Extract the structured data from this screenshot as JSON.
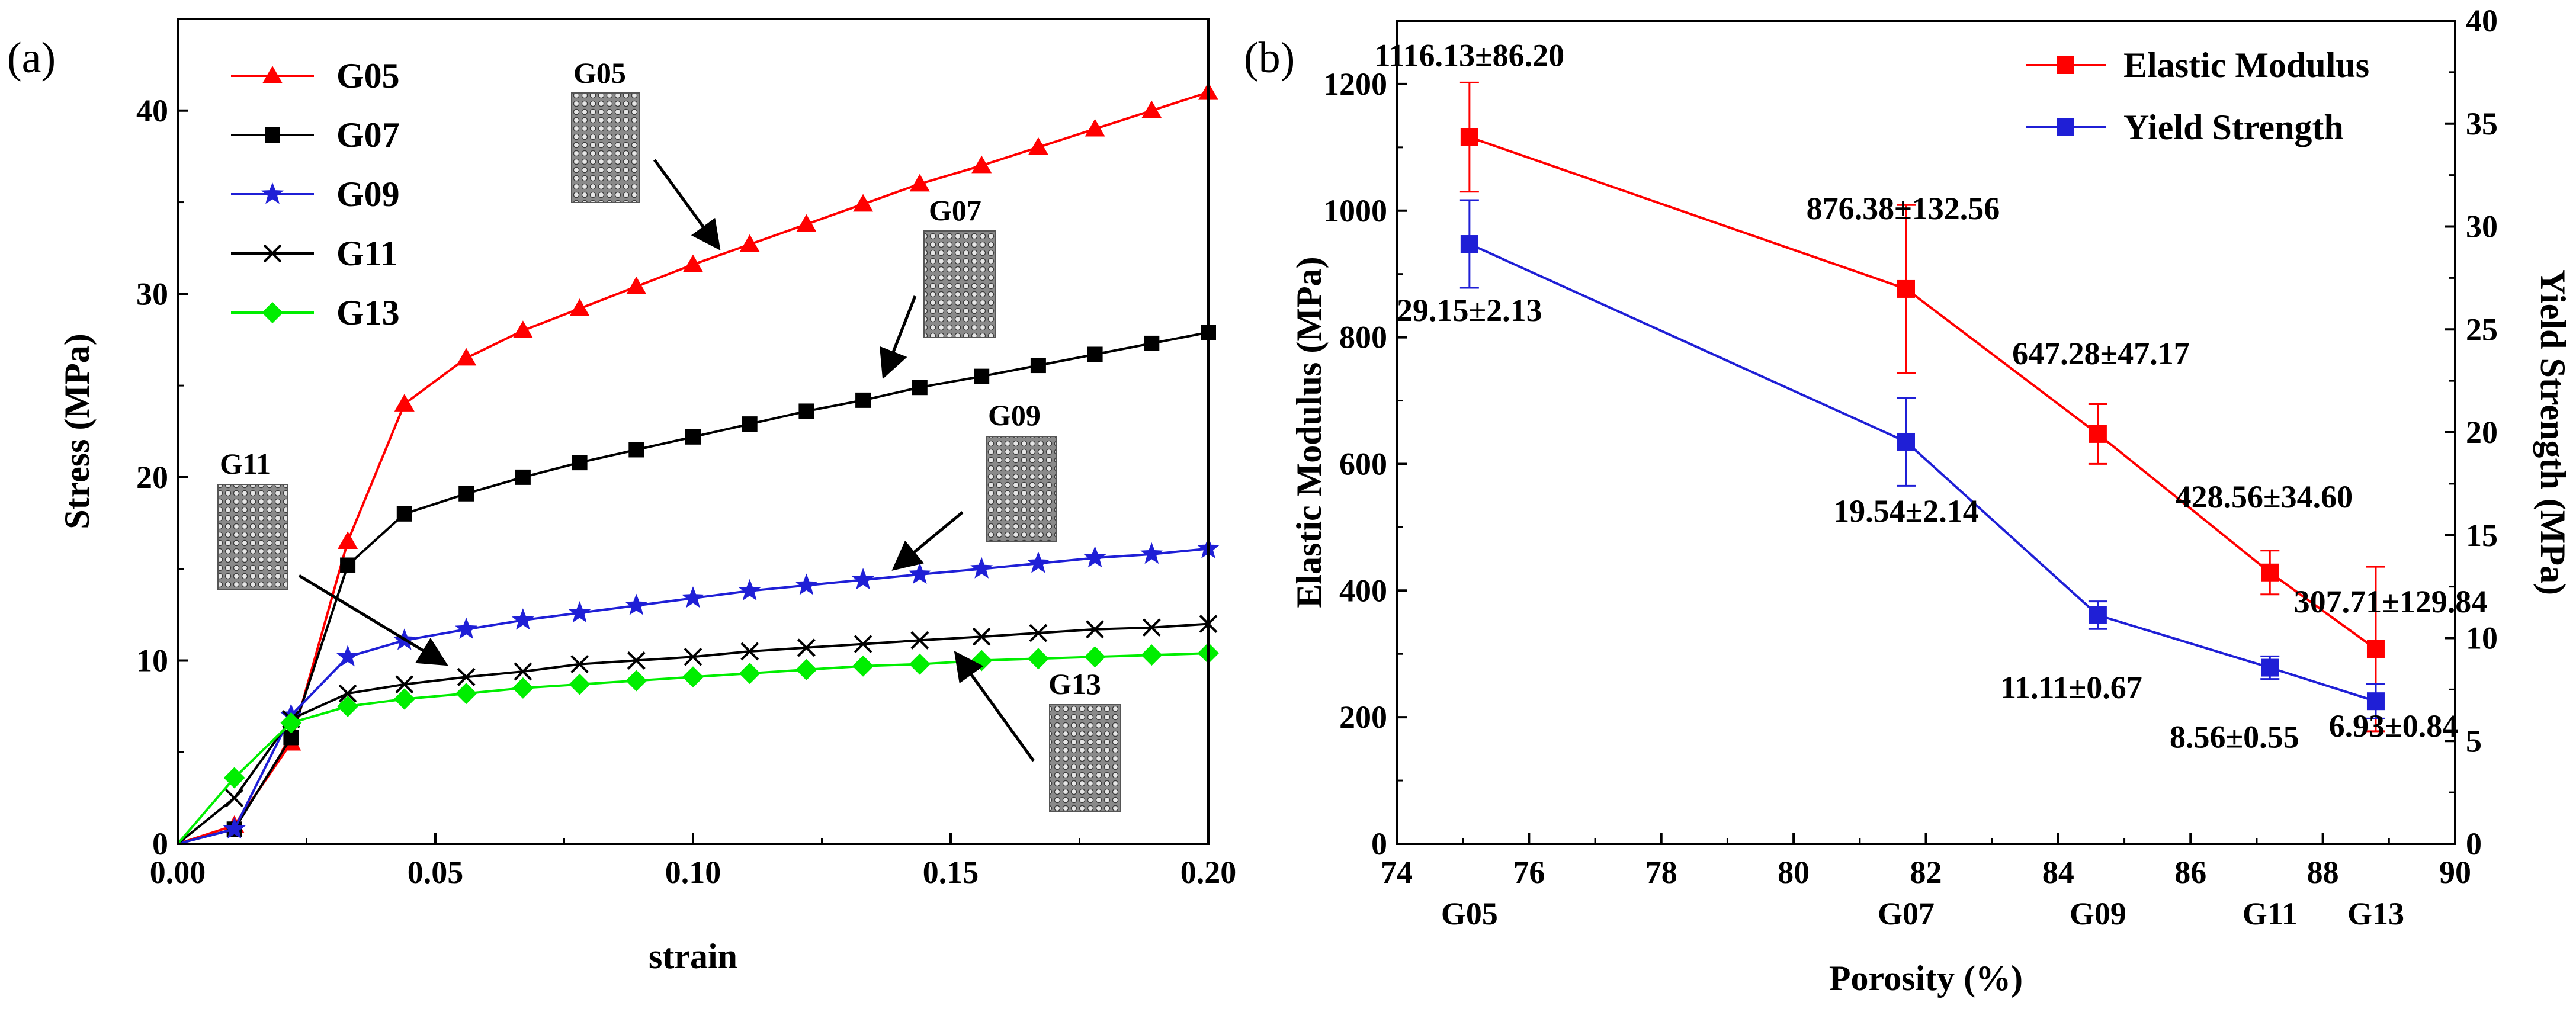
{
  "colors": {
    "G05": "#ff0000",
    "G07": "#000000",
    "G09": "#1f1fd6",
    "G11": "#000000",
    "G13": "#00ee00",
    "elastic": "#ff0000",
    "yield": "#1f1fd6"
  },
  "chart_data": [
    {
      "id": "a",
      "panel_label": "(a)",
      "type": "line",
      "xlabel": "strain",
      "ylabel": "Stress (MPa)",
      "xlim": [
        0.0,
        0.2
      ],
      "ylim": [
        0,
        45
      ],
      "x_ticks": [
        "0.00",
        "0.05",
        "0.10",
        "0.15",
        "0.20"
      ],
      "y_ticks": [
        "0",
        "10",
        "20",
        "30",
        "40"
      ],
      "legend_position": "top-left",
      "series": [
        {
          "name": "G05",
          "marker": "triangle",
          "color_key": "G05",
          "points": [
            [
              0,
              0
            ],
            [
              0.011,
              1.0
            ],
            [
              0.022,
              5.5
            ],
            [
              0.033,
              16.5
            ],
            [
              0.044,
              24
            ],
            [
              0.056,
              26.5
            ],
            [
              0.067,
              28
            ],
            [
              0.078,
              29.2
            ],
            [
              0.089,
              30.4
            ],
            [
              0.1,
              31.6
            ],
            [
              0.111,
              32.7
            ],
            [
              0.122,
              33.8
            ],
            [
              0.133,
              34.9
            ],
            [
              0.144,
              36
            ],
            [
              0.156,
              37
            ],
            [
              0.167,
              38
            ],
            [
              0.178,
              39
            ],
            [
              0.189,
              40
            ],
            [
              0.2,
              41
            ]
          ]
        },
        {
          "name": "G07",
          "marker": "square",
          "color_key": "G07",
          "points": [
            [
              0,
              0
            ],
            [
              0.011,
              0.8
            ],
            [
              0.022,
              5.8
            ],
            [
              0.033,
              15.2
            ],
            [
              0.044,
              18
            ],
            [
              0.056,
              19.1
            ],
            [
              0.067,
              20
            ],
            [
              0.078,
              20.8
            ],
            [
              0.089,
              21.5
            ],
            [
              0.1,
              22.2
            ],
            [
              0.111,
              22.9
            ],
            [
              0.122,
              23.6
            ],
            [
              0.133,
              24.2
            ],
            [
              0.144,
              24.9
            ],
            [
              0.156,
              25.5
            ],
            [
              0.167,
              26.1
            ],
            [
              0.178,
              26.7
            ],
            [
              0.189,
              27.3
            ],
            [
              0.2,
              27.9
            ]
          ]
        },
        {
          "name": "G09",
          "marker": "star",
          "color_key": "G09",
          "points": [
            [
              0,
              0
            ],
            [
              0.011,
              0.8
            ],
            [
              0.022,
              7
            ],
            [
              0.033,
              10.2
            ],
            [
              0.044,
              11.1
            ],
            [
              0.056,
              11.7
            ],
            [
              0.067,
              12.2
            ],
            [
              0.078,
              12.6
            ],
            [
              0.089,
              13
            ],
            [
              0.1,
              13.4
            ],
            [
              0.111,
              13.8
            ],
            [
              0.122,
              14.1
            ],
            [
              0.133,
              14.4
            ],
            [
              0.144,
              14.7
            ],
            [
              0.156,
              15
            ],
            [
              0.167,
              15.3
            ],
            [
              0.178,
              15.6
            ],
            [
              0.189,
              15.8
            ],
            [
              0.2,
              16.1
            ]
          ]
        },
        {
          "name": "G11",
          "marker": "cross",
          "color_key": "G11",
          "points": [
            [
              0,
              0
            ],
            [
              0.011,
              2.5
            ],
            [
              0.022,
              6.8
            ],
            [
              0.033,
              8.2
            ],
            [
              0.044,
              8.7
            ],
            [
              0.056,
              9.1
            ],
            [
              0.067,
              9.4
            ],
            [
              0.078,
              9.8
            ],
            [
              0.089,
              10
            ],
            [
              0.1,
              10.2
            ],
            [
              0.111,
              10.5
            ],
            [
              0.122,
              10.7
            ],
            [
              0.133,
              10.9
            ],
            [
              0.144,
              11.1
            ],
            [
              0.156,
              11.3
            ],
            [
              0.167,
              11.5
            ],
            [
              0.178,
              11.7
            ],
            [
              0.189,
              11.8
            ],
            [
              0.2,
              12
            ]
          ]
        },
        {
          "name": "G13",
          "marker": "diamond",
          "color_key": "G13",
          "points": [
            [
              0,
              0
            ],
            [
              0.011,
              3.6
            ],
            [
              0.022,
              6.6
            ],
            [
              0.033,
              7.5
            ],
            [
              0.044,
              7.9
            ],
            [
              0.056,
              8.2
            ],
            [
              0.067,
              8.5
            ],
            [
              0.078,
              8.7
            ],
            [
              0.089,
              8.9
            ],
            [
              0.1,
              9.1
            ],
            [
              0.111,
              9.3
            ],
            [
              0.122,
              9.5
            ],
            [
              0.133,
              9.7
            ],
            [
              0.144,
              9.8
            ],
            [
              0.156,
              10
            ],
            [
              0.167,
              10.1
            ],
            [
              0.178,
              10.2
            ],
            [
              0.189,
              10.3
            ],
            [
              0.2,
              10.4
            ]
          ]
        }
      ],
      "annotations": [
        {
          "label": "G05",
          "target": [
            0.105,
            32.5
          ]
        },
        {
          "label": "G07",
          "target": [
            0.137,
            25.5
          ]
        },
        {
          "label": "G09",
          "target": [
            0.139,
            15.0
          ]
        },
        {
          "label": "G11",
          "target": [
            0.052,
            9.8
          ]
        },
        {
          "label": "G13",
          "target": [
            0.151,
            10.4
          ]
        }
      ]
    },
    {
      "id": "b",
      "panel_label": "(b)",
      "type": "line",
      "xlabel": "Porosity (%)",
      "ylabel": "Elastic Modulus (MPa)",
      "ylabel_right": "Yield Strength (MPa)",
      "xlim": [
        74,
        90
      ],
      "ylim": [
        0,
        1300
      ],
      "ylim_right": [
        0,
        40
      ],
      "x_ticks": [
        "74",
        "76",
        "78",
        "80",
        "82",
        "84",
        "86",
        "88",
        "90"
      ],
      "y_ticks": [
        "0",
        "200",
        "400",
        "600",
        "800",
        "1000",
        "1200"
      ],
      "y_ticks_right": [
        "0",
        "5",
        "10",
        "15",
        "20",
        "25",
        "30",
        "35",
        "40"
      ],
      "sample_labels": [
        {
          "x": 75.1,
          "label": "G05"
        },
        {
          "x": 81.7,
          "label": "G07"
        },
        {
          "x": 84.6,
          "label": "G09"
        },
        {
          "x": 87.2,
          "label": "G11"
        },
        {
          "x": 88.8,
          "label": "G13"
        }
      ],
      "legend_position": "top-right",
      "series": [
        {
          "name": "Elastic Modulus",
          "axis": "left",
          "color_key": "elastic",
          "x": [
            75.1,
            81.7,
            84.6,
            87.2,
            88.8
          ],
          "values": [
            1116.13,
            876.38,
            647.28,
            428.56,
            307.71
          ],
          "errors": [
            86.2,
            132.56,
            47.17,
            34.6,
            129.84
          ],
          "labels": [
            "1116.13±86.20",
            "876.38±132.56",
            "647.28±47.17",
            "428.56±34.60",
            "307.71±129.84"
          ]
        },
        {
          "name": "Yield Strength",
          "axis": "right",
          "color_key": "yield",
          "x": [
            75.1,
            81.7,
            84.6,
            87.2,
            88.8
          ],
          "values": [
            29.15,
            19.54,
            11.11,
            8.56,
            6.93
          ],
          "errors": [
            2.13,
            2.14,
            0.67,
            0.55,
            0.84
          ],
          "labels": [
            "29.15±2.13",
            "19.54±2.14",
            "11.11±0.67",
            "8.56±0.55",
            "6.93±0.84"
          ]
        }
      ]
    }
  ]
}
